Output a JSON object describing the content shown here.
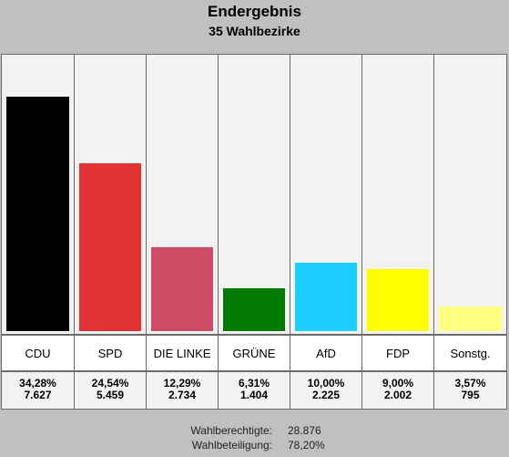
{
  "header": {
    "title": "Endergebnis",
    "subtitle": "35 Wahlbezirke"
  },
  "chart_data": {
    "type": "bar",
    "categories": [
      "CDU",
      "SPD",
      "DIE LINKE",
      "GRÜNE",
      "AfD",
      "FDP",
      "Sonstg."
    ],
    "values": [
      34.28,
      24.54,
      12.29,
      6.31,
      10.0,
      9.0,
      3.57
    ],
    "percent_labels": [
      "34,28%",
      "24,54%",
      "12,29%",
      "6,31%",
      "10,00%",
      "9,00%",
      "3,57%"
    ],
    "votes": [
      "7.627",
      "5.459",
      "2.734",
      "1.404",
      "2.225",
      "2.002",
      "795"
    ],
    "colors": [
      "#000000",
      "#e03232",
      "#cf4a63",
      "#007a00",
      "#1ccfff",
      "#ffff00",
      "#ffff80"
    ],
    "ylim": [
      0,
      40
    ]
  },
  "footer": {
    "eligible_label": "Wahlberechtigte:",
    "eligible_value": "28.876",
    "turnout_label": "Wahlbeteiligung:",
    "turnout_value": "78,20%"
  }
}
